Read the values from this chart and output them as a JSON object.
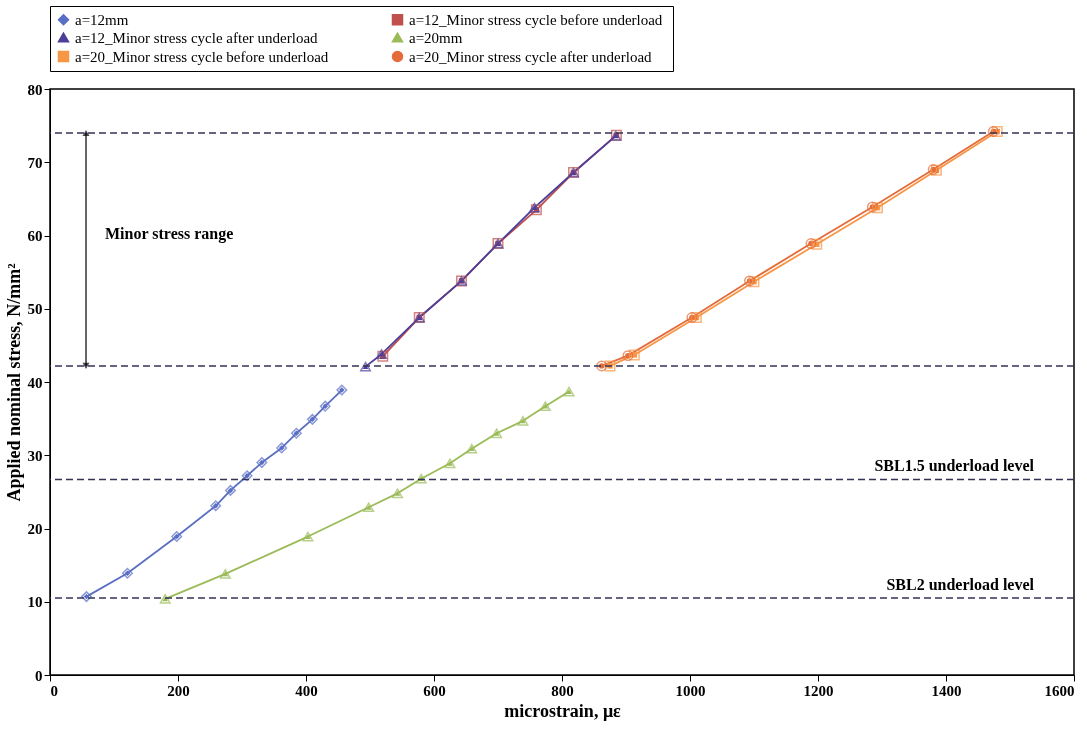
{
  "chart_data": {
    "type": "line",
    "xlabel": "microstrain, με",
    "ylabel": "Applied nominal stress, N/mm²",
    "xlim": [
      0,
      1600
    ],
    "xticks": [
      0,
      200,
      400,
      600,
      800,
      1000,
      1200,
      1400,
      1600
    ],
    "ylim": [
      0,
      80
    ],
    "yticks": [
      0,
      10,
      20,
      30,
      40,
      50,
      60,
      70,
      80
    ],
    "grid": false,
    "legend": "top",
    "line_style": "solid",
    "series": [
      {
        "name": "a=12mm",
        "color": "#5a6fc4",
        "marker": "diamond",
        "x": [
          57,
          121,
          198,
          259,
          282,
          308,
          331,
          362,
          385,
          410,
          430,
          456
        ],
        "values": [
          10.7,
          13.9,
          18.9,
          23.1,
          25.2,
          27.2,
          29.0,
          31.0,
          33.0,
          34.9,
          36.7,
          38.9
        ]
      },
      {
        "name": "a=12_Minor stress cycle  before underload",
        "color": "#c0504d",
        "marker": "square",
        "x": [
          520,
          577,
          643,
          700,
          760,
          818,
          885
        ],
        "values": [
          43.5,
          48.8,
          53.8,
          58.9,
          63.5,
          68.6,
          73.7
        ]
      },
      {
        "name": "a=12_Minor stress cycle after underload",
        "color": "#4b3f9a",
        "marker": "triangle",
        "x": [
          493,
          518,
          577,
          643,
          700,
          757,
          818,
          884
        ],
        "values": [
          42.1,
          43.8,
          48.8,
          53.8,
          58.9,
          63.8,
          68.6,
          73.6
        ]
      },
      {
        "name": "a=20mm",
        "color": "#9bbb59",
        "marker": "triangle",
        "x": [
          180,
          274,
          403,
          498,
          543,
          580,
          625,
          659,
          698,
          739,
          774,
          811
        ],
        "values": [
          10.4,
          13.8,
          18.9,
          22.9,
          24.8,
          26.8,
          28.9,
          30.9,
          33.0,
          34.7,
          36.7,
          38.7
        ]
      },
      {
        "name": "a=20_Minor stress cycle before underload",
        "color": "#f79646",
        "marker": "square",
        "x": [
          875,
          913,
          1010,
          1100,
          1198,
          1293,
          1385,
          1480
        ],
        "values": [
          42.2,
          43.7,
          48.8,
          53.7,
          58.8,
          63.8,
          68.9,
          74.2
        ]
      },
      {
        "name": "a=20_Minor stress cycle after underload",
        "color": "#e46c3a",
        "marker": "circle",
        "x": [
          862,
          903,
          1003,
          1093,
          1189,
          1285,
          1380,
          1474
        ],
        "values": [
          42.2,
          43.6,
          48.8,
          53.8,
          58.9,
          63.9,
          69.0,
          74.2
        ]
      }
    ],
    "ref_lines": [
      {
        "axis": "y",
        "value": 74,
        "label": null,
        "line_style": "dashed",
        "color": "#333355"
      },
      {
        "axis": "y",
        "value": 42.2,
        "label": null,
        "line_style": "dashed",
        "color": "#333355"
      },
      {
        "axis": "y",
        "value": 26.7,
        "label": "SBL1.5 underload level",
        "line_style": "dashed",
        "color": "#333355"
      },
      {
        "axis": "y",
        "value": 10.5,
        "label": "SBL2 underload level",
        "line_style": "dashed",
        "color": "#333355"
      }
    ],
    "annotations": [
      "Minor stress range"
    ]
  }
}
